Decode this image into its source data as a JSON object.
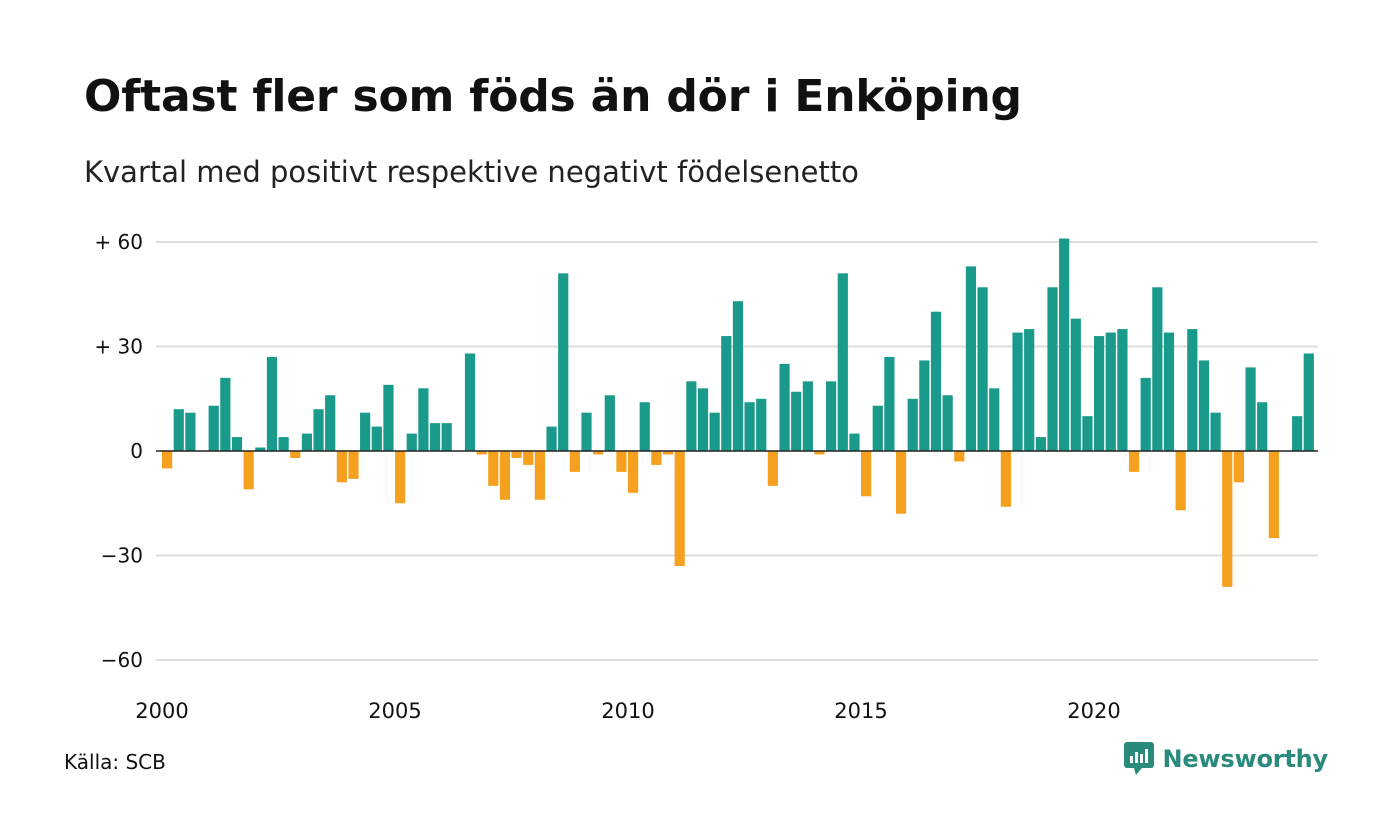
{
  "title": "Oftast fler som föds än dör i Enköping",
  "subtitle": "Kvartal med positivt respektive negativt födelsenetto",
  "source": "Källa: SCB",
  "brand": {
    "name": "Newsworthy",
    "icon": "newsworthy-logo-icon",
    "color": "#2a8a7c"
  },
  "colors": {
    "positive": "#1a9a8a",
    "negative": "#f5a01e",
    "grid": "#dddddd",
    "zero": "#222222"
  },
  "chart_data": {
    "type": "bar",
    "title": "Oftast fler som föds än dör i Enköping",
    "subtitle": "Kvartal med positivt respektive negativt födelsenetto",
    "xlabel": "",
    "ylabel": "",
    "ylim": [
      -60,
      60
    ],
    "yticks": [
      {
        "value": 60,
        "label": "+ 60"
      },
      {
        "value": 30,
        "label": "+ 30"
      },
      {
        "value": 0,
        "label": "0"
      },
      {
        "value": -30,
        "label": "−30"
      },
      {
        "value": -60,
        "label": "−60"
      }
    ],
    "xticks": [
      {
        "value": 2000,
        "label": "2000"
      },
      {
        "value": 2005,
        "label": "2005"
      },
      {
        "value": 2010,
        "label": "2010"
      },
      {
        "value": 2015,
        "label": "2015"
      },
      {
        "value": 2020,
        "label": "2020"
      }
    ],
    "grid": true,
    "legend": "none",
    "series": [
      {
        "start": "2000 Q1",
        "values": [
          -5,
          12,
          11,
          0,
          13,
          21,
          4,
          -11,
          1,
          27,
          4,
          -2,
          5,
          12,
          16,
          -9,
          -8,
          11,
          7,
          19,
          -15,
          5,
          18,
          8,
          8,
          0,
          28,
          -1,
          -10,
          -14,
          -2,
          -4,
          -14,
          7,
          51,
          -6,
          11,
          -1,
          16,
          -6,
          -12,
          14,
          -4,
          -1,
          -33,
          20,
          18,
          11,
          33,
          43,
          14,
          15,
          -10,
          25,
          17,
          20,
          -1,
          20,
          51,
          5,
          -13,
          13,
          27,
          -18,
          15,
          26,
          40,
          16,
          -3,
          53,
          47,
          18,
          -16,
          34,
          35,
          4,
          47,
          61,
          38,
          10,
          33,
          34,
          35,
          -6,
          21,
          47,
          34,
          -17,
          35,
          26,
          11,
          -39,
          -9,
          24,
          14,
          -25,
          0,
          10,
          28
        ]
      }
    ]
  }
}
